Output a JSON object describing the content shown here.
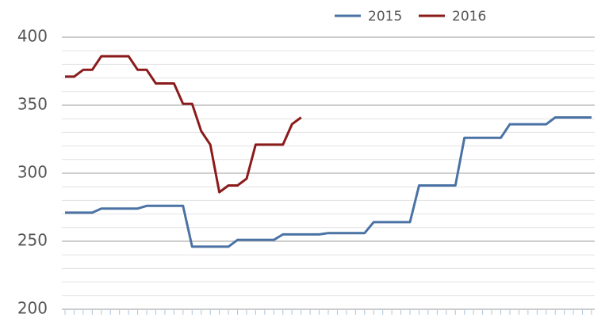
{
  "chart_data": {
    "type": "line",
    "categories": [
      null,
      null,
      null,
      null,
      null,
      null,
      null,
      null,
      null,
      null,
      null,
      null,
      null,
      null,
      null,
      null,
      null,
      null,
      null,
      null,
      null,
      null,
      null,
      null,
      null,
      null,
      null,
      null,
      null,
      null,
      null,
      null,
      null,
      null,
      null,
      null,
      null,
      null,
      null,
      null,
      null,
      null,
      null,
      null,
      null,
      null,
      null,
      null,
      null,
      null,
      null,
      null,
      null,
      null,
      null,
      null,
      null,
      null,
      null
    ],
    "series": [
      {
        "name": "2015",
        "color": "#4a72a4",
        "values": [
          271,
          271,
          271,
          271,
          274,
          274,
          274,
          274,
          274,
          276,
          276,
          276,
          276,
          276,
          246,
          246,
          246,
          246,
          246,
          251,
          251,
          251,
          251,
          251,
          255,
          255,
          255,
          255,
          255,
          256,
          256,
          256,
          256,
          256,
          264,
          264,
          264,
          264,
          264,
          291,
          291,
          291,
          291,
          291,
          326,
          326,
          326,
          326,
          326,
          336,
          336,
          336,
          336,
          336,
          341,
          341,
          341,
          341,
          341
        ]
      },
      {
        "name": "2016",
        "color": "#8b1a1a",
        "values": [
          371,
          371,
          376,
          376,
          386,
          386,
          386,
          386,
          376,
          376,
          366,
          366,
          366,
          351,
          351,
          331,
          321,
          286,
          291,
          291,
          296,
          321,
          321,
          321,
          321,
          336,
          341,
          null,
          null,
          null,
          null,
          null,
          null,
          null,
          null,
          null,
          null,
          null,
          null,
          null,
          null,
          null,
          null,
          null,
          null,
          null,
          null,
          null,
          null,
          null,
          null,
          null,
          null,
          null,
          null,
          null,
          null,
          null,
          null
        ]
      }
    ],
    "ylim": [
      200,
      400
    ],
    "yticks": [
      200,
      250,
      300,
      350,
      400
    ],
    "minor_yticks": [
      210,
      220,
      230,
      240,
      260,
      270,
      280,
      290,
      310,
      320,
      330,
      340,
      360,
      370,
      380,
      390
    ],
    "grid": true,
    "legend": "top"
  }
}
